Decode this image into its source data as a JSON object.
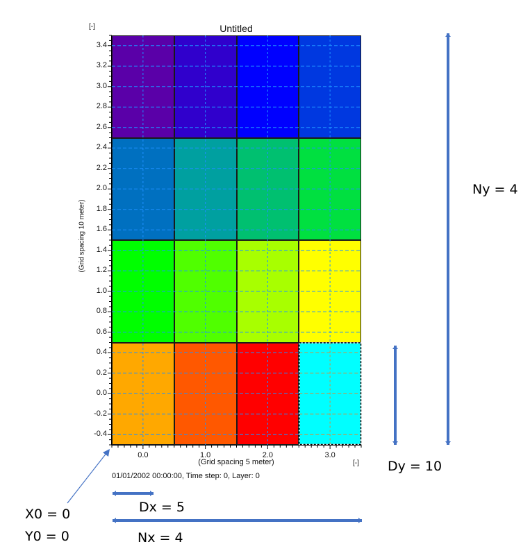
{
  "chart_data": {
    "type": "heatmap",
    "title": "Untitled",
    "xlabel": "(Grid spacing 5 meter)",
    "ylabel": "(Grid spacing 10 meter)",
    "x_unit": "[-]",
    "y_unit": "[-]",
    "xlim": [
      -0.5,
      3.5
    ],
    "ylim": [
      -0.5,
      3.5
    ],
    "x_ticks": [
      "0.0",
      "1.0",
      "2.0",
      "3.0"
    ],
    "y_ticks": [
      "-0.4",
      "-0.2",
      "0.0",
      "0.2",
      "0.4",
      "0.6",
      "0.8",
      "1.0",
      "1.2",
      "1.4",
      "1.6",
      "1.8",
      "2.0",
      "2.2",
      "2.4",
      "2.6",
      "2.8",
      "3.0",
      "3.2",
      "3.4"
    ],
    "grid": true,
    "grid_style": "dashed",
    "nx": 4,
    "ny": 4,
    "cells_top_to_bottom": [
      [
        "#5a00a8",
        "#3000cc",
        "#0000ff",
        "#0038e0"
      ],
      [
        "#0070c0",
        "#00a0a0",
        "#00c070",
        "#00e040"
      ],
      [
        "#00ff00",
        "#50ff00",
        "#a8ff00",
        "#ffff00"
      ],
      [
        "#ffa800",
        "#ff5800",
        "#ff0000",
        "#00ffff"
      ]
    ],
    "selected_cell": {
      "col": 3,
      "row": 0
    },
    "status": "01/01/2002 00:00:00, Time step: 0, Layer: 0"
  },
  "annotations": {
    "ny": "Ny = 4",
    "dy": "Dy = 10",
    "dx": "Dx = 5",
    "nx": "Nx = 4",
    "x0": "X0 = 0",
    "y0": "Y0 = 0",
    "arrow_color": "#4472c4"
  }
}
